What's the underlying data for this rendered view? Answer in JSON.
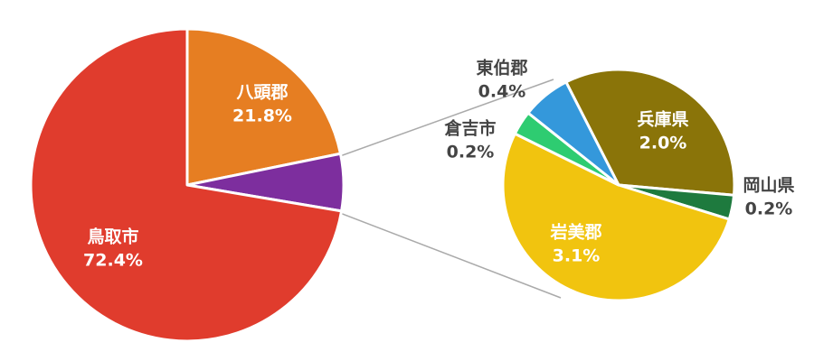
{
  "chart_data": [
    {
      "type": "pie",
      "categories": [
        "八頭郡",
        null,
        "鳥取市"
      ],
      "values": [
        21.8,
        5.9,
        72.4
      ],
      "value_labels": [
        "21.8%",
        null,
        "72.4%"
      ],
      "colors": [
        "#e67e22",
        "#7d2e9e",
        "#e03c2d"
      ]
    },
    {
      "type": "pie",
      "categories": [
        "兵庫県",
        "岡山県",
        "岩美郡",
        "倉吉市",
        "東伯郡"
      ],
      "values": [
        2.0,
        0.2,
        3.1,
        0.2,
        0.4
      ],
      "value_labels": [
        "2.0%",
        "0.2%",
        "3.1%",
        "0.2%",
        "0.4%"
      ],
      "colors": [
        "#8a7409",
        "#1e7a3e",
        "#f1c40f",
        "#2ecc71",
        "#3498db"
      ]
    }
  ]
}
